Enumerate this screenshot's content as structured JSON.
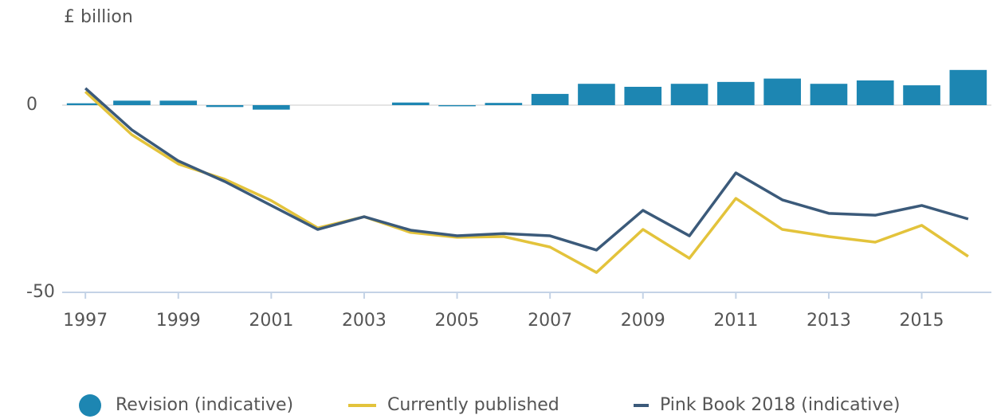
{
  "chart_data": {
    "type": "combo",
    "y_axis_label": "£ billion",
    "x": [
      1997,
      1998,
      1999,
      2000,
      2001,
      2002,
      2003,
      2004,
      2005,
      2006,
      2007,
      2008,
      2009,
      2010,
      2011,
      2012,
      2013,
      2014,
      2015,
      2016
    ],
    "xlim": [
      1996.5,
      2016.5
    ],
    "xticks": [
      1997,
      1999,
      2001,
      2003,
      2005,
      2007,
      2009,
      2011,
      2013,
      2015
    ],
    "ylim": [
      -50,
      15
    ],
    "yticks": [
      -50,
      0
    ],
    "series": [
      {
        "name": "Revision (indicative)",
        "type": "bar",
        "color": "#1d86b2",
        "values": [
          0.5,
          1.2,
          1.2,
          -0.5,
          -1.2,
          0,
          0,
          0.7,
          -0.3,
          0.6,
          3.0,
          5.7,
          4.9,
          5.7,
          6.2,
          7.1,
          5.7,
          6.6,
          5.3,
          9.4
        ]
      },
      {
        "name": "Currently published",
        "type": "line",
        "color": "#e3c33b",
        "values": [
          3.6,
          -7.9,
          -15.7,
          -19.8,
          -25.5,
          -32.8,
          -29.8,
          -34.0,
          -35.3,
          -35.1,
          -37.9,
          -44.7,
          -33.2,
          -40.9,
          -24.9,
          -33.2,
          -35.1,
          -36.6,
          -32.1,
          -40.4
        ]
      },
      {
        "name": "Pink Book 2018 (indicative)",
        "type": "line",
        "color": "#3b5a7a",
        "values": [
          4.5,
          -6.6,
          -14.9,
          -20.4,
          -26.8,
          -33.2,
          -29.8,
          -33.4,
          -34.9,
          -34.3,
          -34.9,
          -38.7,
          -28.1,
          -34.9,
          -18.1,
          -25.3,
          -28.9,
          -29.4,
          -26.8,
          -30.4
        ]
      }
    ]
  }
}
